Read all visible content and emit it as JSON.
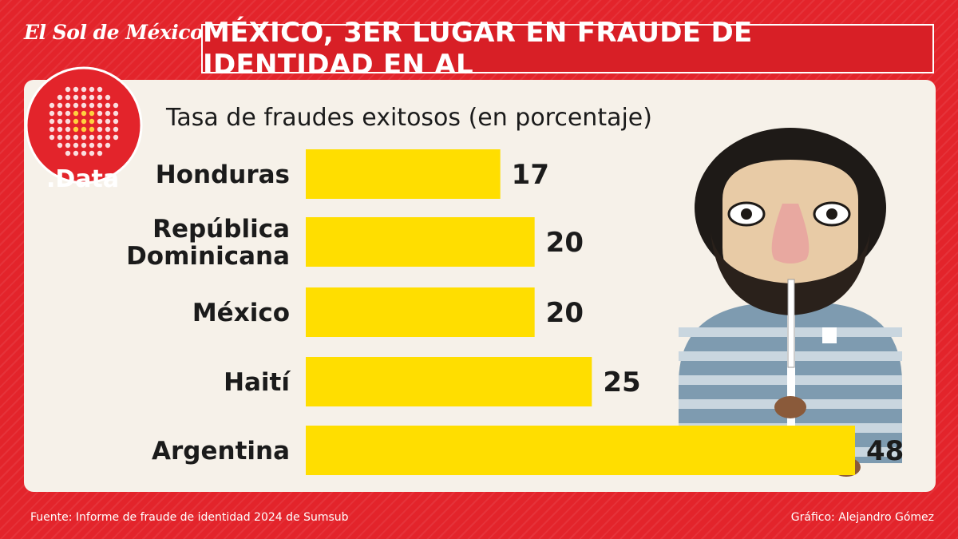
{
  "brand": {
    "masthead": "El Sol de México",
    "section_label": ".Data"
  },
  "headline": "MÉXICO, 3ER LUGAR EN FRAUDE DE IDENTIDAD EN AL",
  "footer": {
    "source": "Fuente: Informe de fraude de identidad 2024 de Sumsub",
    "credit": "Gráfico: Alejandro Gómez"
  },
  "colors": {
    "background": "#e3242b",
    "bar": "#ffde00",
    "panel": "#f6f1e9",
    "text": "#1b1b1b"
  },
  "chart_data": {
    "type": "bar",
    "orientation": "horizontal",
    "title": "Tasa de fraudes exitosos (en porcentaje)",
    "categories": [
      "Honduras",
      "República Dominicana",
      "México",
      "Haití",
      "Argentina"
    ],
    "category_lines": [
      [
        "Honduras"
      ],
      [
        "República",
        "Dominicana"
      ],
      [
        "México"
      ],
      [
        "Haití"
      ],
      [
        "Argentina"
      ]
    ],
    "values": [
      17,
      20,
      20,
      25,
      48
    ],
    "value_labels": [
      "17",
      "20",
      "20",
      "25",
      "48"
    ],
    "xlim": [
      0,
      48
    ],
    "grid": false,
    "legend": "none",
    "data_labels": true
  }
}
